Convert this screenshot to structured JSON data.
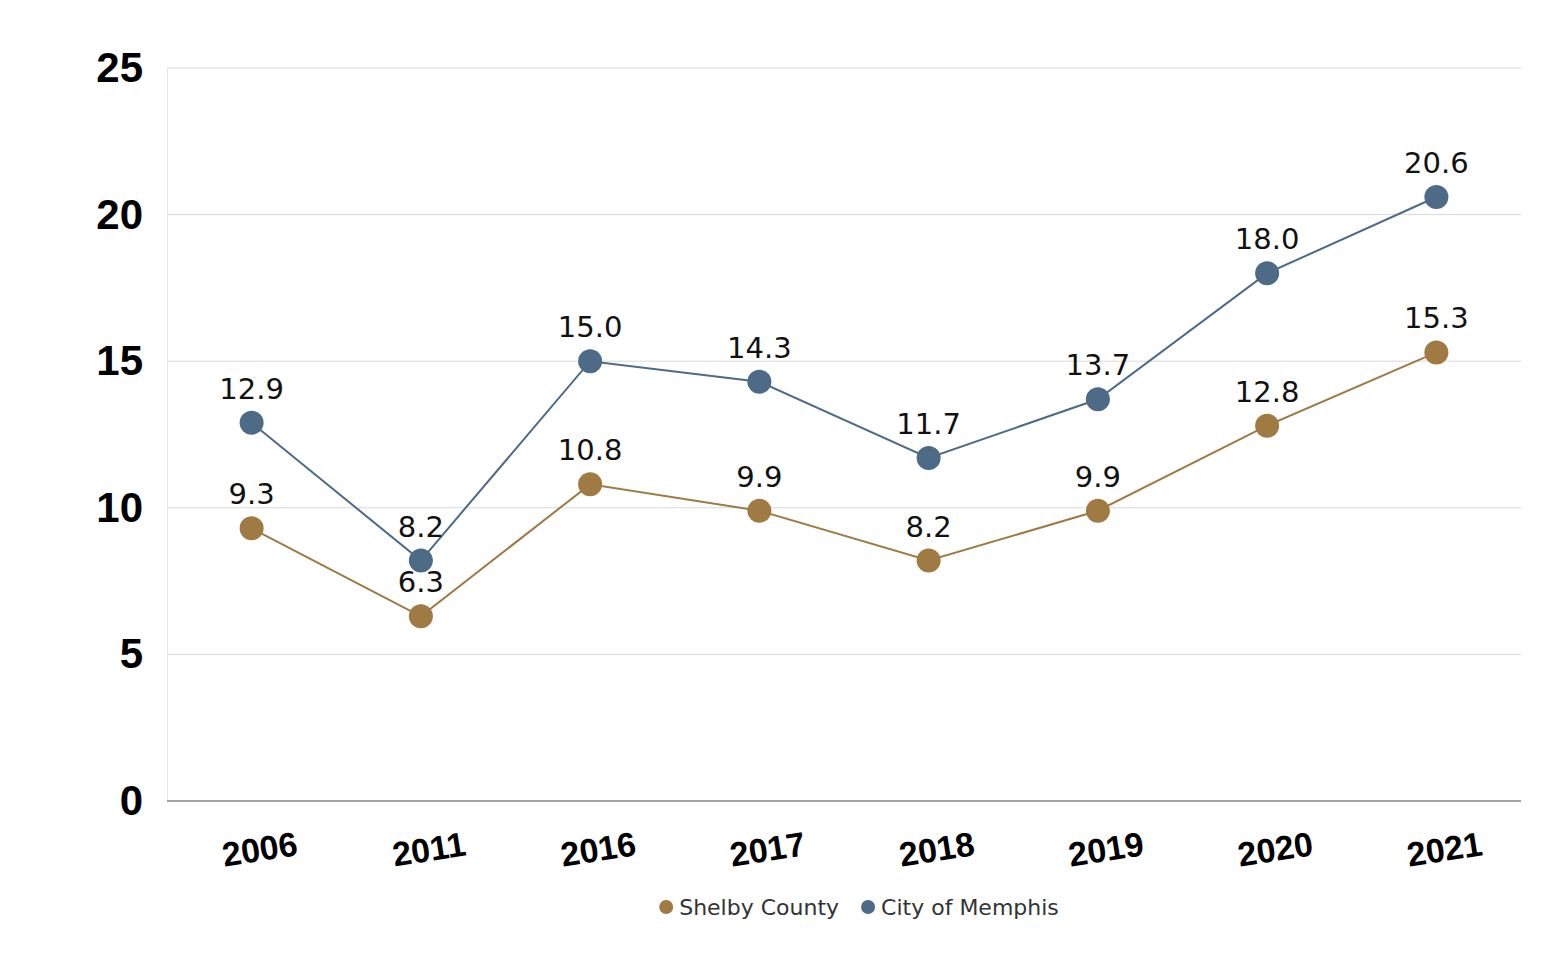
{
  "chart_data": {
    "type": "line",
    "categories": [
      "2006",
      "2011",
      "2016",
      "2017",
      "2018",
      "2019",
      "2020",
      "2021"
    ],
    "series": [
      {
        "name": "Shelby County",
        "color": "#9f7a43",
        "marker": "circle",
        "values": [
          9.3,
          6.3,
          10.8,
          9.9,
          8.2,
          9.9,
          12.8,
          15.3
        ],
        "value_labels": [
          "9.3",
          "6.3",
          "10.8",
          "9.9",
          "8.2",
          "9.9",
          "12.8",
          "15.3"
        ]
      },
      {
        "name": "City of Memphis",
        "color": "#4d6a87",
        "marker": "circle",
        "values": [
          12.9,
          8.2,
          15.0,
          14.3,
          11.7,
          13.7,
          18.0,
          20.6
        ],
        "value_labels": [
          "12.9",
          "8.2",
          "15.0",
          "14.3",
          "11.7",
          "13.7",
          "18.0",
          "20.6"
        ]
      }
    ],
    "ylim": [
      0,
      25
    ],
    "yticks": [
      0,
      5,
      10,
      15,
      20,
      25
    ],
    "grid": true,
    "legend": "bottom",
    "data_labels": true
  }
}
